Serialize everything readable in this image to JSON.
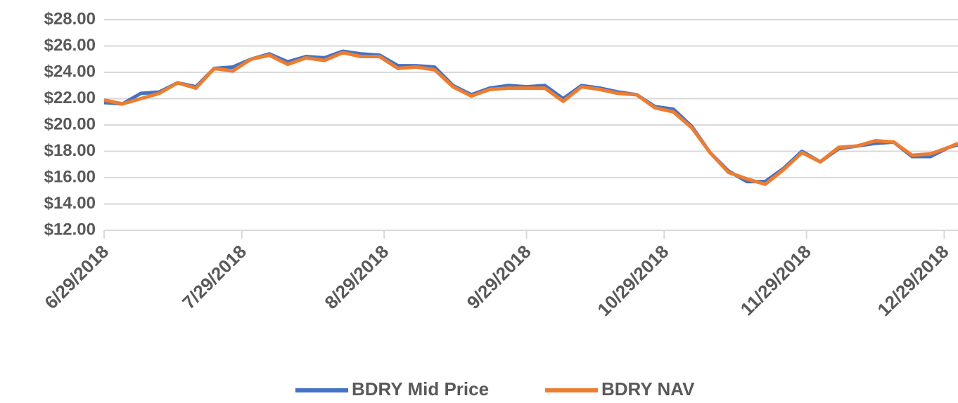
{
  "chart_data": {
    "type": "line",
    "x": [
      "6/29/2018",
      "7/3/2018",
      "7/7/2018",
      "7/11/2018",
      "7/15/2018",
      "7/19/2018",
      "7/23/2018",
      "7/27/2018",
      "7/31/2018",
      "8/4/2018",
      "8/8/2018",
      "8/12/2018",
      "8/16/2018",
      "8/20/2018",
      "8/24/2018",
      "8/28/2018",
      "9/1/2018",
      "9/5/2018",
      "9/9/2018",
      "9/13/2018",
      "9/17/2018",
      "9/21/2018",
      "9/25/2018",
      "9/29/2018",
      "10/3/2018",
      "10/7/2018",
      "10/11/2018",
      "10/15/2018",
      "10/19/2018",
      "10/23/2018",
      "10/27/2018",
      "10/31/2018",
      "11/4/2018",
      "11/8/2018",
      "11/12/2018",
      "11/16/2018",
      "11/20/2018",
      "11/24/2018",
      "11/28/2018",
      "12/2/2018",
      "12/6/2018",
      "12/10/2018",
      "12/14/2018",
      "12/18/2018",
      "12/22/2018",
      "12/26/2018",
      "12/30/2018",
      "1/1/2019"
    ],
    "series": [
      {
        "name": "BDRY Mid Price",
        "color": "#4472c4",
        "values": [
          21.7,
          21.6,
          22.4,
          22.5,
          23.2,
          22.9,
          24.3,
          24.4,
          25.0,
          25.4,
          24.8,
          25.2,
          25.1,
          25.6,
          25.4,
          25.3,
          24.5,
          24.5,
          24.4,
          23.0,
          22.3,
          22.8,
          23.0,
          22.9,
          23.0,
          22.0,
          23.0,
          22.8,
          22.5,
          22.3,
          21.4,
          21.2,
          19.9,
          17.9,
          16.5,
          15.7,
          15.7,
          16.7,
          18.0,
          17.2,
          18.2,
          18.4,
          18.6,
          18.7,
          17.6,
          17.6,
          18.3,
          18.5
        ]
      },
      {
        "name": "BDRY NAV",
        "color": "#ed7d31",
        "values": [
          21.9,
          21.6,
          22.0,
          22.4,
          23.2,
          22.8,
          24.3,
          24.1,
          25.0,
          25.3,
          24.6,
          25.1,
          24.9,
          25.5,
          25.2,
          25.2,
          24.3,
          24.4,
          24.2,
          22.9,
          22.2,
          22.7,
          22.8,
          22.8,
          22.8,
          21.8,
          22.9,
          22.7,
          22.4,
          22.3,
          21.3,
          21.0,
          19.8,
          17.9,
          16.4,
          15.9,
          15.5,
          16.6,
          17.9,
          17.2,
          18.3,
          18.4,
          18.8,
          18.7,
          17.7,
          17.8,
          18.3,
          18.6
        ]
      }
    ],
    "xlim": [
      "6/29/2018",
      "1/1/2019"
    ],
    "xticks": [
      "6/29/2018",
      "7/29/2018",
      "8/29/2018",
      "9/29/2018",
      "10/29/2018",
      "11/29/2018",
      "12/29/2018"
    ],
    "ylim": [
      12,
      28
    ],
    "yticks": [
      {
        "value": 12,
        "label": "$12.00"
      },
      {
        "value": 14,
        "label": "$14.00"
      },
      {
        "value": 16,
        "label": "$16.00"
      },
      {
        "value": 18,
        "label": "$18.00"
      },
      {
        "value": 20,
        "label": "$20.00"
      },
      {
        "value": 22,
        "label": "$22.00"
      },
      {
        "value": 24,
        "label": "$24.00"
      },
      {
        "value": 26,
        "label": "$26.00"
      },
      {
        "value": 28,
        "label": "$28.00"
      }
    ],
    "grid": true,
    "legend": "bottom"
  }
}
